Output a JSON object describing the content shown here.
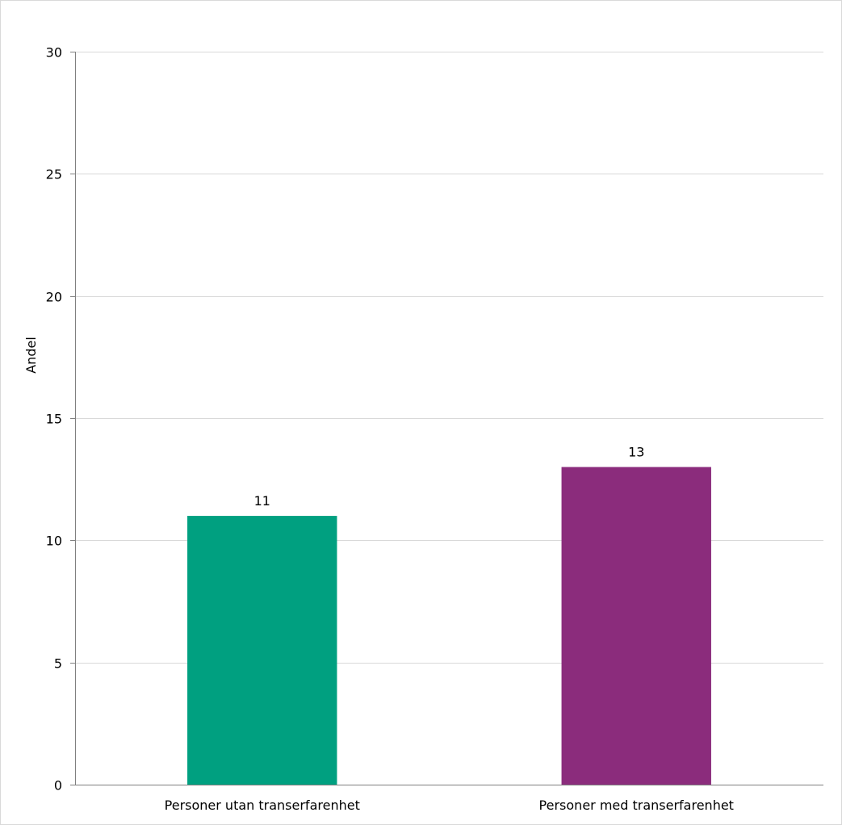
{
  "chart_data": {
    "type": "bar",
    "title": "",
    "xlabel": "",
    "ylabel": "Andel",
    "ylim": [
      0,
      30
    ],
    "yticks": [
      0,
      5,
      10,
      15,
      20,
      25,
      30
    ],
    "categories": [
      "Personer utan transerfarenhet",
      "Personer med transerfarenhet"
    ],
    "values": [
      11,
      13
    ],
    "data_labels": [
      "11",
      "13"
    ],
    "colors": [
      "#00a080",
      "#8b2c7c"
    ],
    "grid": true,
    "legend": "none"
  }
}
